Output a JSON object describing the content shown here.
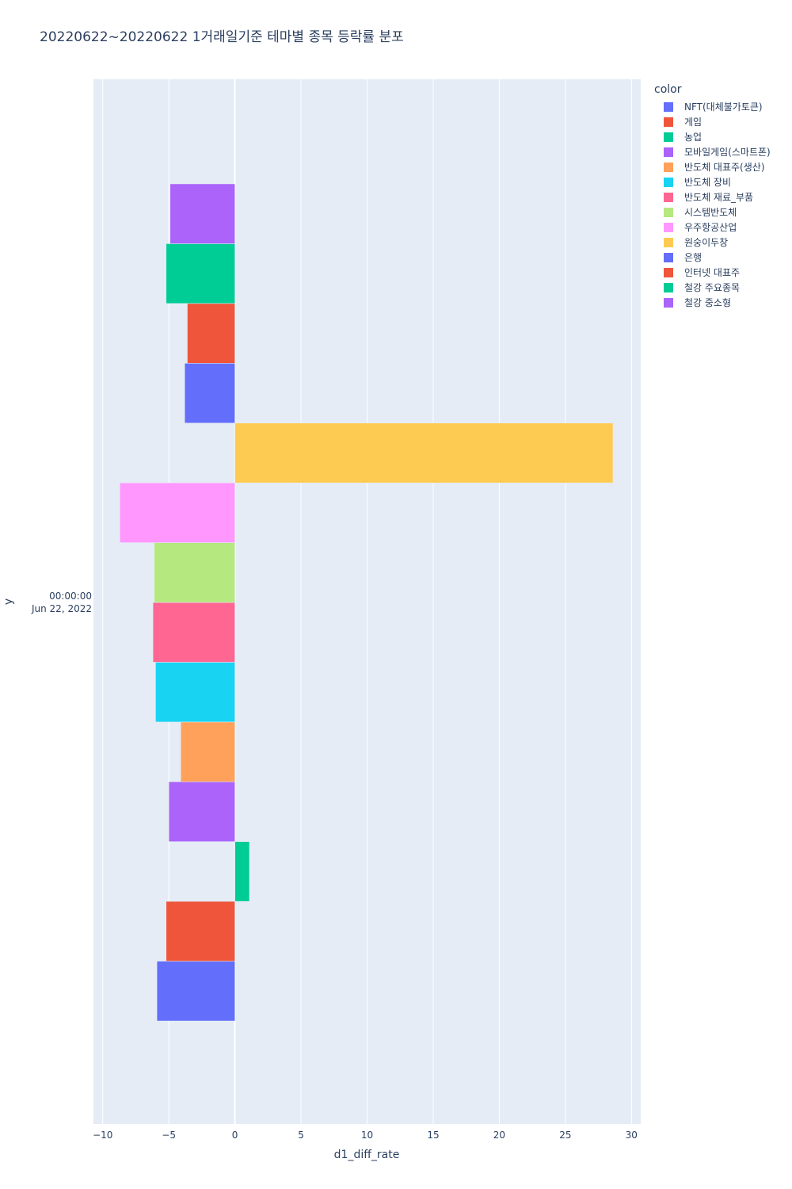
{
  "chart_data": {
    "type": "bar",
    "orientation": "horizontal",
    "title": "20220622~20220622 1거래일기준 테마별 종목 등락률 분포",
    "xlabel": "d1_diff_rate",
    "ylabel": "y",
    "xlim": [
      -10.7,
      30.7
    ],
    "xticks": [
      -10,
      -5,
      0,
      5,
      10,
      15,
      20,
      25,
      30
    ],
    "xtick_labels": [
      "−10",
      "−5",
      "0",
      "5",
      "10",
      "15",
      "20",
      "25",
      "30"
    ],
    "y_category_label": [
      "00:00:00",
      "Jun 22, 2022"
    ],
    "grid": true,
    "legend_title": "color",
    "legend_position": "top-right",
    "series": [
      {
        "name": "NFT(대체불가토큰)",
        "color": "#636efa",
        "value": -5.9
      },
      {
        "name": "게임",
        "color": "#ef553b",
        "value": -5.2
      },
      {
        "name": "농업",
        "color": "#00cc96",
        "value": 1.1
      },
      {
        "name": "모바일게임(스마트폰)",
        "color": "#ab63fa",
        "value": -5.0
      },
      {
        "name": "반도체 대표주(생산)",
        "color": "#ffa15a",
        "value": -4.1
      },
      {
        "name": "반도체 장비",
        "color": "#19d3f3",
        "value": -6.0
      },
      {
        "name": "반도체 재료_부품",
        "color": "#ff6692",
        "value": -6.2
      },
      {
        "name": "시스템반도체",
        "color": "#b6e880",
        "value": -6.1
      },
      {
        "name": "우주항공산업",
        "color": "#ff97ff",
        "value": -8.7
      },
      {
        "name": "원숭이두창",
        "color": "#fecb52",
        "value": 28.6
      },
      {
        "name": "은행",
        "color": "#636efa",
        "value": -3.8
      },
      {
        "name": "인터넷 대표주",
        "color": "#ef553b",
        "value": -3.6
      },
      {
        "name": "철강 주요종목",
        "color": "#00cc96",
        "value": -5.2
      },
      {
        "name": "철강 중소형",
        "color": "#ab63fa",
        "value": -4.9
      }
    ]
  }
}
